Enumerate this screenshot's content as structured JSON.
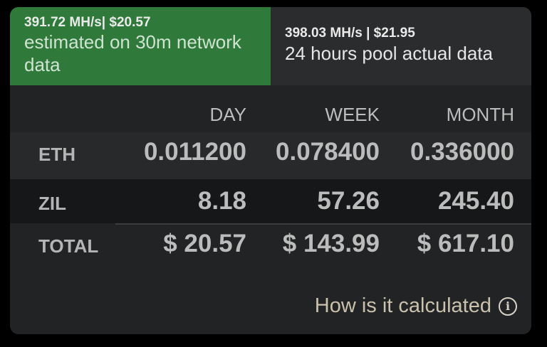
{
  "tabs": {
    "estimated": {
      "top": "391.72 MH/s| $20.57",
      "sub": "estimated on 30m network data"
    },
    "actual": {
      "top": "398.03 MH/s | $21.95",
      "sub": "24 hours pool actual data"
    }
  },
  "table": {
    "headers": [
      "DAY",
      "WEEK",
      "MONTH"
    ],
    "rows": [
      {
        "label": "ETH",
        "day": "0.011200",
        "week": "0.078400",
        "month": "0.336000"
      },
      {
        "label": "ZIL",
        "day": "8.18",
        "week": "57.26",
        "month": "245.40"
      },
      {
        "label": "TOTAL",
        "day": "$ 20.57",
        "week": "$ 143.99",
        "month": "$ 617.10"
      }
    ]
  },
  "help": {
    "label": "How is it calculated",
    "icon": "info-icon"
  },
  "colors": {
    "active_tab": "#2f7a3b",
    "card_bg": "#222324"
  }
}
